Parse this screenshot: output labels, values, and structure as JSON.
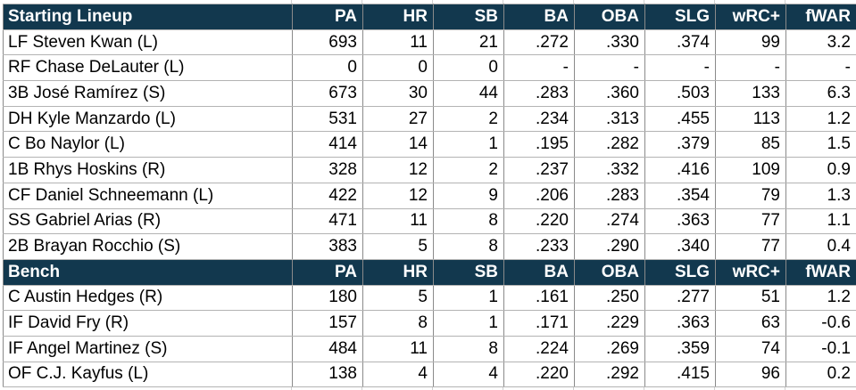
{
  "colors": {
    "header_bg": "#12384E",
    "header_text": "#FFFFFF",
    "cell_text": "#000000",
    "grid_vertical": "#8A8A8A",
    "grid_horizontal": "#B3B3B3"
  },
  "table": {
    "columns": [
      "PA",
      "HR",
      "SB",
      "BA",
      "OBA",
      "SLG",
      "wRC+",
      "fWAR"
    ],
    "sections": [
      {
        "label": "Starting Lineup",
        "rows": [
          {
            "player": "LF Steven Kwan (L)",
            "stats": [
              "693",
              "11",
              "21",
              ".272",
              ".330",
              ".374",
              "99",
              "3.2"
            ]
          },
          {
            "player": "RF Chase DeLauter (L)",
            "stats": [
              "0",
              "0",
              "0",
              "-",
              "-",
              "-",
              "-",
              "-"
            ]
          },
          {
            "player": "3B José Ramírez (S)",
            "stats": [
              "673",
              "30",
              "44",
              ".283",
              ".360",
              ".503",
              "133",
              "6.3"
            ]
          },
          {
            "player": "DH Kyle Manzardo (L)",
            "stats": [
              "531",
              "27",
              "2",
              ".234",
              ".313",
              ".455",
              "113",
              "1.2"
            ]
          },
          {
            "player": "C Bo Naylor (L)",
            "stats": [
              "414",
              "14",
              "1",
              ".195",
              ".282",
              ".379",
              "85",
              "1.5"
            ]
          },
          {
            "player": "1B Rhys Hoskins (R)",
            "stats": [
              "328",
              "12",
              "2",
              ".237",
              ".332",
              ".416",
              "109",
              "0.9"
            ]
          },
          {
            "player": "CF Daniel Schneemann (L)",
            "stats": [
              "422",
              "12",
              "9",
              ".206",
              ".283",
              ".354",
              "79",
              "1.3"
            ]
          },
          {
            "player": "SS Gabriel Arias (R)",
            "stats": [
              "471",
              "11",
              "8",
              ".220",
              ".274",
              ".363",
              "77",
              "1.1"
            ]
          },
          {
            "player": "2B Brayan Rocchio (S)",
            "stats": [
              "383",
              "5",
              "8",
              ".233",
              ".290",
              ".340",
              "77",
              "0.4"
            ]
          }
        ]
      },
      {
        "label": "Bench",
        "rows": [
          {
            "player": "C Austin Hedges (R)",
            "stats": [
              "180",
              "5",
              "1",
              ".161",
              ".250",
              ".277",
              "51",
              "1.2"
            ]
          },
          {
            "player": "IF David Fry (R)",
            "stats": [
              "157",
              "8",
              "1",
              ".171",
              ".229",
              ".363",
              "63",
              "-0.6"
            ]
          },
          {
            "player": "IF Angel Martinez (S)",
            "stats": [
              "484",
              "11",
              "8",
              ".224",
              ".269",
              ".359",
              "74",
              "-0.1"
            ]
          },
          {
            "player": "OF C.J. Kayfus (L)",
            "stats": [
              "138",
              "4",
              "4",
              ".220",
              ".292",
              ".415",
              "96",
              "0.2"
            ]
          }
        ]
      }
    ]
  }
}
